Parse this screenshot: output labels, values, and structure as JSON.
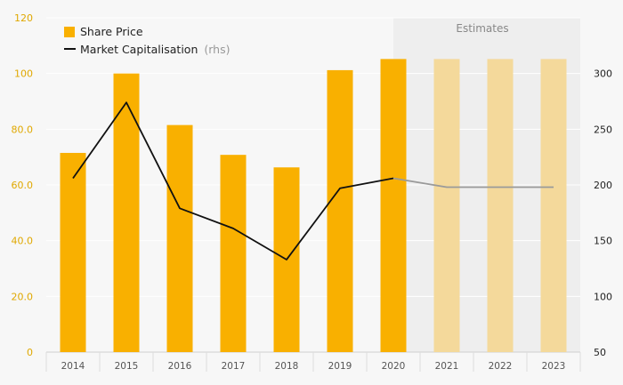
{
  "chart_data": {
    "type": "bar",
    "categories": [
      "2014",
      "2015",
      "2016",
      "2017",
      "2018",
      "2019",
      "2020",
      "2021",
      "2022",
      "2023"
    ],
    "estimate_start_index": 7,
    "estimates_label": "Estimates",
    "series": [
      {
        "name": "Share Price",
        "kind": "bar",
        "axis": "left",
        "values": [
          71.5,
          100.0,
          81.5,
          70.8,
          66.3,
          101.2,
          105.2,
          105.2,
          105.2,
          105.2
        ]
      },
      {
        "name": "Market Capitalisation",
        "name_suffix": "(rhs)",
        "kind": "line",
        "axis": "right",
        "values": [
          206,
          274,
          179,
          161,
          133,
          197,
          206,
          198,
          198,
          198
        ]
      }
    ],
    "y_left": {
      "min": 0,
      "max": 120,
      "ticks": [
        "0",
        "20.0",
        "40.0",
        "60.0",
        "80.0",
        "100",
        "120"
      ]
    },
    "y_right": {
      "min": 50,
      "max": 350,
      "ticks": [
        "50",
        "100",
        "150",
        "200",
        "250",
        "300"
      ]
    },
    "colors": {
      "bar": "#f9b000",
      "bar_estimate": "#f4d99b",
      "line": "#111111",
      "line_estimate": "#9a9a9a",
      "estimate_shade": "#eeeeee",
      "left_axis_text": "#e0a800"
    },
    "legend_position": "top-left"
  }
}
